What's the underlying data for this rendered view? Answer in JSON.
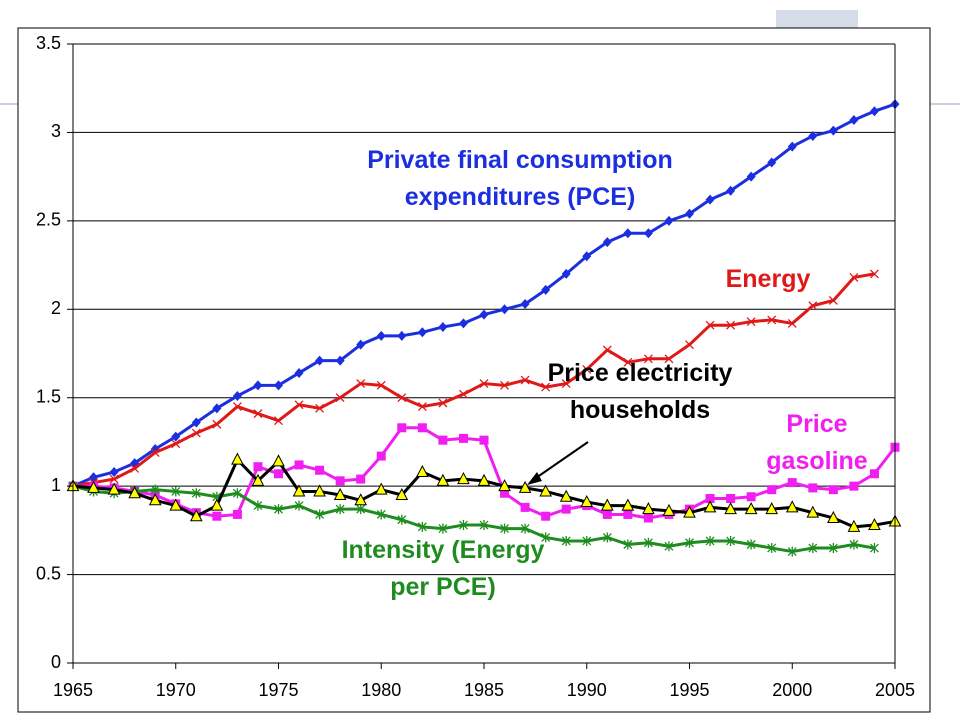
{
  "chart_data": {
    "type": "line",
    "x": [
      1965,
      1966,
      1967,
      1968,
      1969,
      1970,
      1971,
      1972,
      1973,
      1974,
      1975,
      1976,
      1977,
      1978,
      1979,
      1980,
      1981,
      1982,
      1983,
      1984,
      1985,
      1986,
      1987,
      1988,
      1989,
      1990,
      1991,
      1992,
      1993,
      1994,
      1995,
      1996,
      1997,
      1998,
      1999,
      2000,
      2001,
      2002,
      2003,
      2004,
      2005
    ],
    "xlim": [
      1965,
      2005
    ],
    "xticks": [
      1965,
      1970,
      1975,
      1980,
      1985,
      1990,
      1995,
      2000,
      2005
    ],
    "ylim": [
      0,
      3.5
    ],
    "yticks": [
      0,
      0.5,
      1,
      1.5,
      2,
      2.5,
      3,
      3.5
    ],
    "grid": true,
    "series": [
      {
        "name": "Private final consumption expenditures (PCE)",
        "color": "#1c2fe0",
        "marker": "diamond",
        "values": [
          1.0,
          1.05,
          1.08,
          1.13,
          1.21,
          1.28,
          1.36,
          1.44,
          1.51,
          1.57,
          1.57,
          1.64,
          1.71,
          1.71,
          1.8,
          1.85,
          1.85,
          1.87,
          1.9,
          1.92,
          1.97,
          2.0,
          2.03,
          2.11,
          2.2,
          2.3,
          2.38,
          2.43,
          2.43,
          2.5,
          2.54,
          2.62,
          2.67,
          2.75,
          2.83,
          2.92,
          2.98,
          3.01,
          3.07,
          3.12,
          3.16
        ]
      },
      {
        "name": "Energy",
        "color": "#e01818",
        "marker": "x",
        "values": [
          1.0,
          1.02,
          1.04,
          1.1,
          1.19,
          1.24,
          1.3,
          1.35,
          1.45,
          1.41,
          1.37,
          1.46,
          1.44,
          1.5,
          1.58,
          1.57,
          1.5,
          1.45,
          1.47,
          1.52,
          1.58,
          1.57,
          1.6,
          1.56,
          1.58,
          1.66,
          1.77,
          1.7,
          1.72,
          1.72,
          1.8,
          1.91,
          1.91,
          1.93,
          1.94,
          1.92,
          2.02,
          2.05,
          2.18,
          2.2,
          null
        ]
      },
      {
        "name": "Price gasoline",
        "color": "#f01ef0",
        "marker": "square",
        "values": [
          1.0,
          1.0,
          0.99,
          0.97,
          0.95,
          0.9,
          0.85,
          0.83,
          0.84,
          1.11,
          1.07,
          1.12,
          1.09,
          1.03,
          1.04,
          1.17,
          1.33,
          1.33,
          1.26,
          1.27,
          1.26,
          0.96,
          0.88,
          0.83,
          0.87,
          0.89,
          0.84,
          0.84,
          0.82,
          0.84,
          0.87,
          0.93,
          0.93,
          0.94,
          0.98,
          1.02,
          0.99,
          0.98,
          1.0,
          1.07,
          1.22
        ]
      },
      {
        "name": "Intensity (Energy per PCE)",
        "color": "#1e8c1e",
        "marker": "star",
        "values": [
          1.0,
          0.97,
          0.96,
          0.97,
          0.98,
          0.97,
          0.96,
          0.94,
          0.96,
          0.89,
          0.87,
          0.89,
          0.84,
          0.87,
          0.87,
          0.84,
          0.81,
          0.77,
          0.76,
          0.78,
          0.78,
          0.76,
          0.76,
          0.71,
          0.69,
          0.69,
          0.71,
          0.67,
          0.68,
          0.66,
          0.68,
          0.69,
          0.69,
          0.67,
          0.65,
          0.63,
          0.65,
          0.65,
          0.67,
          0.65,
          null
        ]
      },
      {
        "name": "Price electricity households",
        "color": "#000000",
        "marker": "triangle",
        "marker_fill": "#ffff00",
        "values": [
          1.0,
          0.99,
          0.98,
          0.96,
          0.92,
          0.89,
          0.83,
          0.89,
          1.15,
          1.03,
          1.14,
          0.97,
          0.97,
          0.95,
          0.92,
          0.98,
          0.95,
          1.08,
          1.03,
          1.04,
          1.03,
          1.0,
          0.99,
          0.97,
          0.94,
          0.91,
          0.89,
          0.89,
          0.87,
          0.86,
          0.85,
          0.88,
          0.87,
          0.87,
          0.87,
          0.88,
          0.85,
          0.82,
          0.77,
          0.78,
          0.8
        ]
      }
    ]
  }
}
